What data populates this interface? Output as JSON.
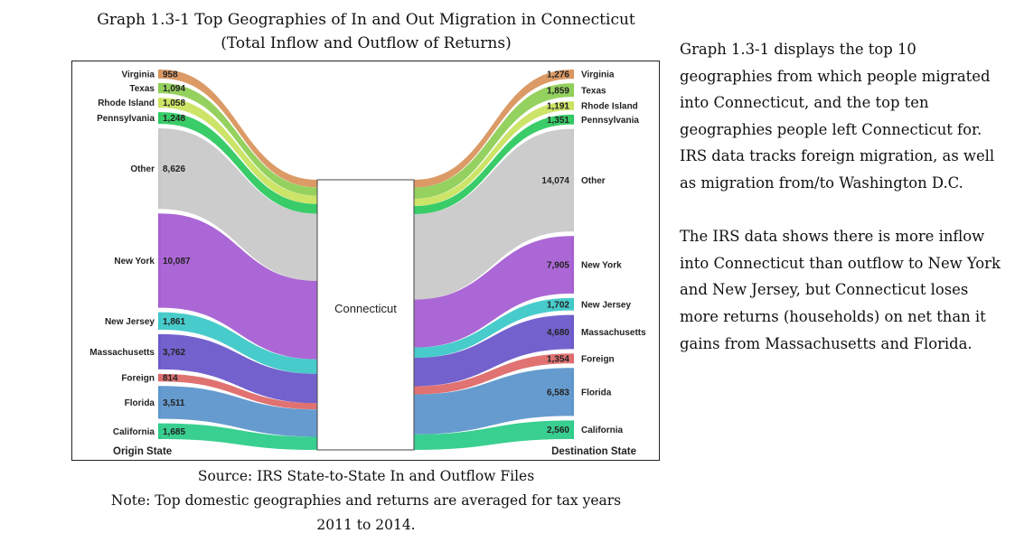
{
  "title_line1": "Graph 1.3-1 Top Geographies of In and Out Migration in Connecticut",
  "title_line2": "(Total Inflow and Outflow of Returns)",
  "source": "Source: IRS State-to-State In and Outflow Files",
  "note_line1": "Note: Top domestic geographies and returns are averaged for tax years",
  "note_line2": "2011 to 2014.",
  "side_text": {
    "para1": "Graph 1.3-1 displays the top 10 geographies from which people migrated into Connecticut, and the top ten geographies people left Connecticut for.  IRS data tracks foreign migration, as well as migration from/to Washington D.C.",
    "para2": "The IRS data shows there is more inflow into Connecticut than outflow to New York and New Jersey, but Connecticut loses more returns (households) on net than it gains from Massachusetts and Florida."
  },
  "chart_data": {
    "type": "sankey",
    "center_node": "Connecticut",
    "left_axis_label": "Origin State",
    "right_axis_label": "Destination State",
    "inflow": [
      {
        "name": "Virginia",
        "value": 958,
        "value_label": "958",
        "color": "#d9955e"
      },
      {
        "name": "Texas",
        "value": 1094,
        "value_label": "1,094",
        "color": "#8fcf56"
      },
      {
        "name": "Rhode Island",
        "value": 1058,
        "value_label": "1,058",
        "color": "#c9e35f"
      },
      {
        "name": "Pennsylvania",
        "value": 1248,
        "value_label": "1,248",
        "color": "#2ec961"
      },
      {
        "name": "Other",
        "value": 8626,
        "value_label": "8,626",
        "color": "#c9c9c9"
      },
      {
        "name": "New York",
        "value": 10087,
        "value_label": "10,087",
        "color": "#a65fd3"
      },
      {
        "name": "New Jersey",
        "value": 1861,
        "value_label": "1,861",
        "color": "#3ec8c8"
      },
      {
        "name": "Massachusetts",
        "value": 3762,
        "value_label": "3,762",
        "color": "#6b5acb"
      },
      {
        "name": "Foreign",
        "value": 814,
        "value_label": "814",
        "color": "#de6a6a"
      },
      {
        "name": "Florida",
        "value": 3511,
        "value_label": "3,511",
        "color": "#5e96cc"
      },
      {
        "name": "California",
        "value": 1685,
        "value_label": "1,685",
        "color": "#2ecc8a"
      }
    ],
    "outflow": [
      {
        "name": "Virginia",
        "value": 1276,
        "value_label": "1,276",
        "color": "#d9955e"
      },
      {
        "name": "Texas",
        "value": 1859,
        "value_label": "1,859",
        "color": "#8fcf56"
      },
      {
        "name": "Rhode Island",
        "value": 1191,
        "value_label": "1,191",
        "color": "#c9e35f"
      },
      {
        "name": "Pennsylvania",
        "value": 1351,
        "value_label": "1,351",
        "color": "#2ec961"
      },
      {
        "name": "Other",
        "value": 14074,
        "value_label": "14,074",
        "color": "#c9c9c9"
      },
      {
        "name": "New York",
        "value": 7905,
        "value_label": "7,905",
        "color": "#a65fd3"
      },
      {
        "name": "New Jersey",
        "value": 1702,
        "value_label": "1,702",
        "color": "#3ec8c8"
      },
      {
        "name": "Massachusetts",
        "value": 4680,
        "value_label": "4,680",
        "color": "#6b5acb"
      },
      {
        "name": "Foreign",
        "value": 1354,
        "value_label": "1,354",
        "color": "#de6a6a"
      },
      {
        "name": "Florida",
        "value": 6583,
        "value_label": "6,583",
        "color": "#5e96cc"
      },
      {
        "name": "California",
        "value": 2560,
        "value_label": "2,560",
        "color": "#2ecc8a"
      }
    ]
  }
}
